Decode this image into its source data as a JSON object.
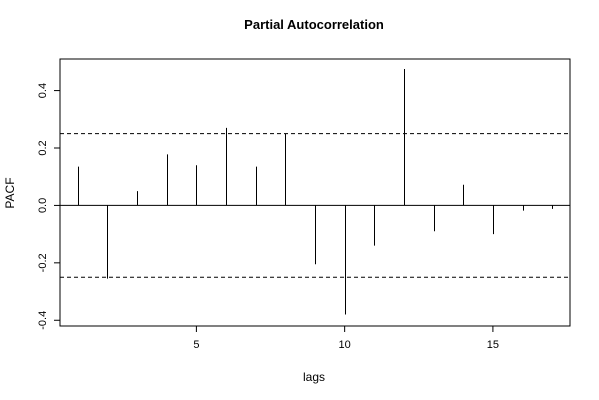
{
  "chart_data": {
    "type": "bar",
    "title": "Partial Autocorrelation",
    "xlabel": "lags",
    "ylabel": "PACF",
    "xlim": [
      0.4,
      17.6
    ],
    "ylim": [
      -0.42,
      0.51
    ],
    "x_ticks": [
      5,
      10,
      15
    ],
    "y_ticks": [
      -0.4,
      -0.2,
      0.0,
      0.2,
      0.4
    ],
    "y_tick_labels": [
      "-0.4",
      "-0.2",
      "0.0",
      "0.2",
      "0.4"
    ],
    "x_tick_labels": [
      "5",
      "10",
      "15"
    ],
    "confidence_bounds": [
      0.25,
      -0.25
    ],
    "lags": [
      1,
      2,
      3,
      4,
      5,
      6,
      7,
      8,
      9,
      10,
      11,
      12,
      13,
      14,
      15,
      16,
      17
    ],
    "values": [
      0.135,
      -0.255,
      0.05,
      0.178,
      0.14,
      0.27,
      0.135,
      0.25,
      -0.205,
      -0.38,
      -0.14,
      0.475,
      -0.09,
      0.072,
      -0.1,
      -0.018,
      -0.012
    ],
    "grid": false,
    "legend": "none"
  },
  "colors": {
    "line": "#000000",
    "bound": "#000000"
  }
}
